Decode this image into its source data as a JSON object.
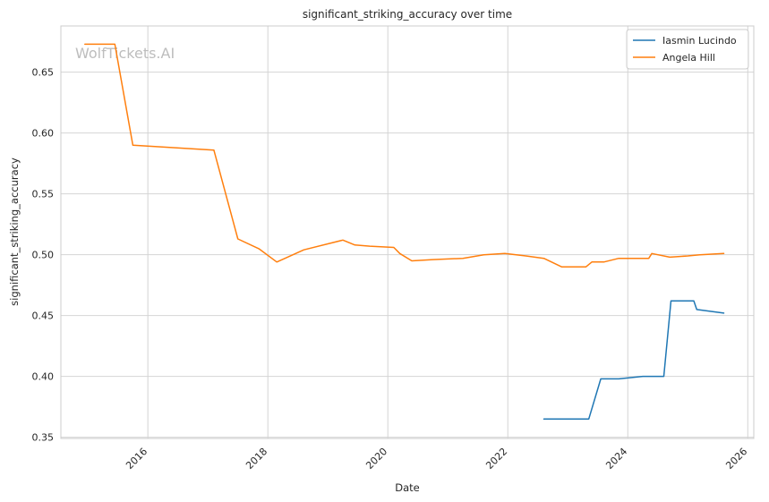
{
  "chart_data": {
    "type": "line",
    "title": "significant_striking_accuracy over time",
    "xlabel": "Date",
    "ylabel": "significant_striking_accuracy",
    "watermark": "WolfTickets.AI",
    "xlim": [
      2014.55,
      2026.1
    ],
    "ylim": [
      0.349,
      0.688
    ],
    "x_ticks": [
      2016,
      2018,
      2020,
      2022,
      2024,
      2026
    ],
    "x_tick_labels": [
      "2016",
      "2018",
      "2020",
      "2022",
      "2024",
      "2026"
    ],
    "y_ticks": [
      0.35,
      0.4,
      0.45,
      0.5,
      0.55,
      0.6,
      0.65
    ],
    "y_tick_labels": [
      "0.35",
      "0.40",
      "0.45",
      "0.50",
      "0.55",
      "0.60",
      "0.65"
    ],
    "grid": true,
    "legend_position": "top-right",
    "series": [
      {
        "name": "Iasmin Lucindo",
        "color": "#1f77b4",
        "x": [
          2022.6,
          2023.35,
          2023.55,
          2023.85,
          2024.25,
          2024.6,
          2024.72,
          2025.1,
          2025.15,
          2025.6
        ],
        "y": [
          0.365,
          0.365,
          0.398,
          0.398,
          0.4,
          0.4,
          0.462,
          0.462,
          0.455,
          0.452
        ]
      },
      {
        "name": "Angela Hill",
        "color": "#ff7f0e",
        "x": [
          2014.95,
          2015.45,
          2015.75,
          2017.1,
          2017.5,
          2017.85,
          2018.15,
          2018.6,
          2019.25,
          2019.45,
          2019.7,
          2020.1,
          2020.2,
          2020.4,
          2020.75,
          2021.25,
          2021.6,
          2021.95,
          2022.3,
          2022.6,
          2022.9,
          2023.3,
          2023.4,
          2023.6,
          2023.85,
          2024.35,
          2024.4,
          2024.7,
          2025.0,
          2025.2,
          2025.6
        ],
        "y": [
          0.673,
          0.673,
          0.59,
          0.586,
          0.513,
          0.505,
          0.494,
          0.504,
          0.512,
          0.508,
          0.507,
          0.506,
          0.501,
          0.495,
          0.496,
          0.497,
          0.5,
          0.501,
          0.499,
          0.497,
          0.49,
          0.49,
          0.494,
          0.494,
          0.497,
          0.497,
          0.501,
          0.498,
          0.499,
          0.5,
          0.501
        ]
      }
    ]
  }
}
